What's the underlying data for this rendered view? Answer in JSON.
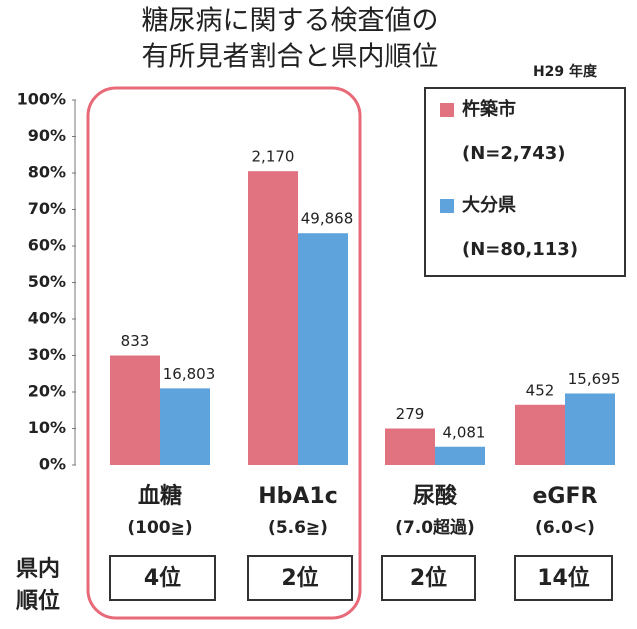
{
  "chart_data": {
    "type": "bar",
    "title": [
      "糖尿病に関する検査値の",
      "有所見者割合と県内順位"
    ],
    "subtitle": "H29 年度",
    "categories": [
      "血糖",
      "HbA1c",
      "尿酸",
      "eGFR"
    ],
    "category_notes": [
      "(100≧)",
      "(5.6≧)",
      "(7.0超過)",
      "(6.0<)"
    ],
    "ranking_label": [
      "県内",
      "順位"
    ],
    "rankings": [
      "4位",
      "2位",
      "2位",
      "14位"
    ],
    "series": [
      {
        "name": "杵築市",
        "n_label": "(N=2,743)",
        "color": "#e0737f",
        "values": [
          30,
          80.5,
          10,
          16.5
        ],
        "count_labels": [
          "833",
          "2,170",
          "279",
          "452"
        ]
      },
      {
        "name": "大分県",
        "n_label": "(N=80,113)",
        "color": "#5ea3dc",
        "values": [
          21,
          63.5,
          5,
          19.6
        ],
        "count_labels": [
          "16,803",
          "49,868",
          "4,081",
          "15,695"
        ]
      }
    ],
    "ylim": [
      0,
      100
    ],
    "yticks": [
      {
        "value": 0,
        "label": "0%"
      },
      {
        "value": 10,
        "label": "10%"
      },
      {
        "value": 20,
        "label": "20%"
      },
      {
        "value": 30,
        "label": "30%"
      },
      {
        "value": 40,
        "label": "40%"
      },
      {
        "value": 50,
        "label": "50%"
      },
      {
        "value": 60,
        "label": "60%"
      },
      {
        "value": 70,
        "label": "70%"
      },
      {
        "value": 80,
        "label": "80%"
      },
      {
        "value": 90,
        "label": "90%"
      },
      {
        "value": 100,
        "label": "100%"
      }
    ]
  }
}
